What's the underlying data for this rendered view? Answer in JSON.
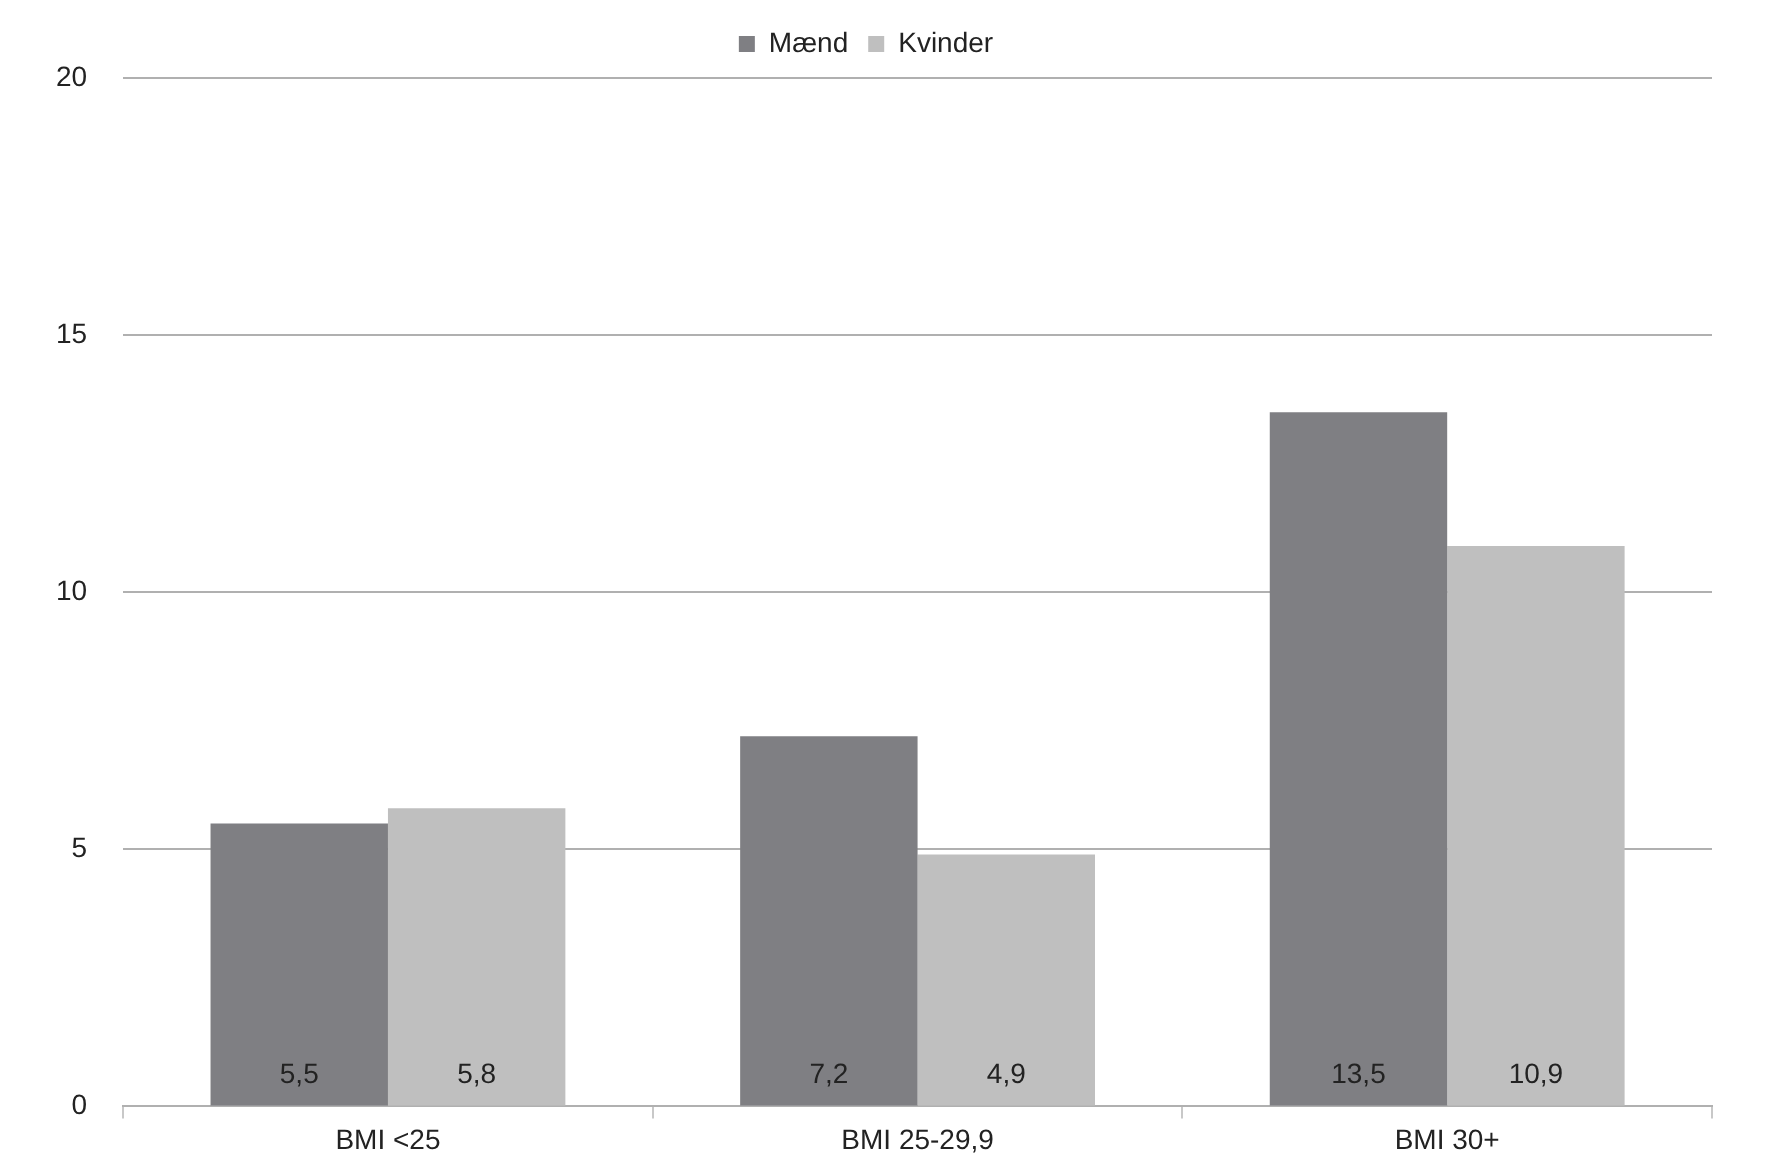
{
  "chart_data": {
    "type": "bar",
    "categories": [
      "BMI <25",
      "BMI 25-29,9",
      "BMI 30+"
    ],
    "series": [
      {
        "name": "Mænd",
        "color": "#7f7f83",
        "values": [
          5.5,
          7.2,
          13.5
        ],
        "value_labels": [
          "5,5",
          "7,2",
          "13,5"
        ]
      },
      {
        "name": "Kvinder",
        "color": "#bfbfbf",
        "values": [
          5.8,
          4.9,
          10.9
        ],
        "value_labels": [
          "5,8",
          "4,9",
          "10,9"
        ]
      }
    ],
    "ylim": [
      0,
      20
    ],
    "yticks": [
      0,
      5,
      10,
      15,
      20
    ],
    "grid": "y",
    "legend": "top"
  }
}
